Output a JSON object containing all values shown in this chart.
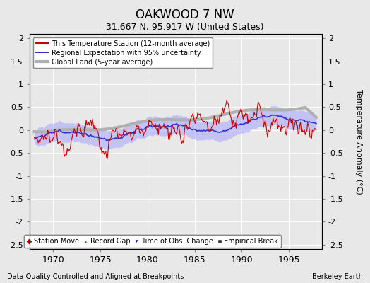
{
  "title": "OAKWOOD 7 NW",
  "subtitle": "31.667 N, 95.917 W (United States)",
  "xlabel_left": "Data Quality Controlled and Aligned at Breakpoints",
  "xlabel_right": "Berkeley Earth",
  "ylabel": "Temperature Anomaly (°C)",
  "xlim": [
    1967.5,
    1998.5
  ],
  "ylim": [
    -2.6,
    2.1
  ],
  "yticks": [
    -2.5,
    -2,
    -1.5,
    -1,
    -0.5,
    0,
    0.5,
    1,
    1.5,
    2
  ],
  "xticks": [
    1970,
    1975,
    1980,
    1985,
    1990,
    1995
  ],
  "bg_color": "#e8e8e8",
  "plot_bg_color": "#e8e8e8",
  "legend_entries": [
    {
      "label": "This Temperature Station (12-month average)",
      "color": "#cc0000",
      "lw": 1.5
    },
    {
      "label": "Regional Expectation with 95% uncertainty",
      "color": "#4444cc",
      "lw": 1.5
    },
    {
      "label": "Global Land (5-year average)",
      "color": "#aaaaaa",
      "lw": 3
    }
  ],
  "marker_legend": [
    {
      "label": "Station Move",
      "color": "#cc0000",
      "marker": "D"
    },
    {
      "label": "Record Gap",
      "color": "#228800",
      "marker": "^"
    },
    {
      "label": "Time of Obs. Change",
      "color": "#0000cc",
      "marker": "v"
    },
    {
      "label": "Empirical Break",
      "color": "#333333",
      "marker": "s"
    }
  ]
}
